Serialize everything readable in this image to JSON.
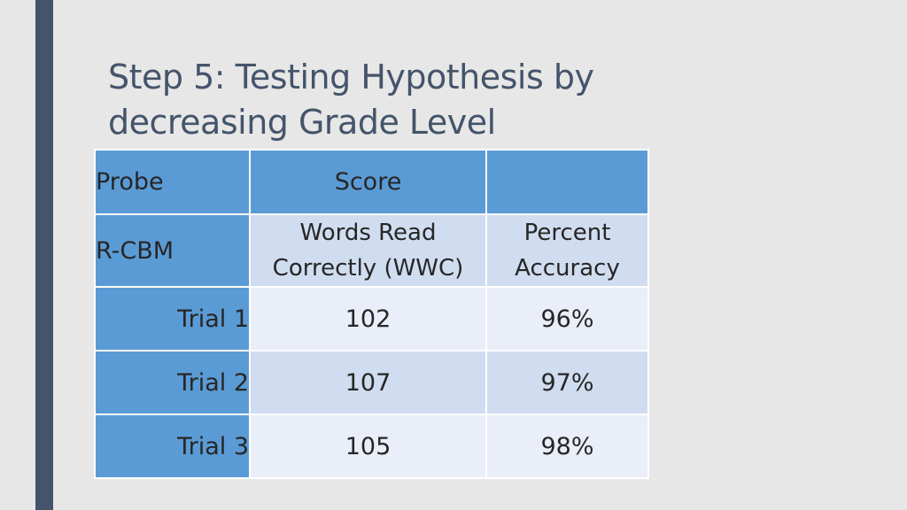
{
  "slide": {
    "title_line1": "Step 5: Testing Hypothesis by",
    "title_line2": "decreasing Grade Level",
    "accent_color": "#44546a",
    "header_color": "#5b9bd5"
  },
  "table": {
    "header": {
      "probe": "Probe",
      "score": "Score",
      "blank": ""
    },
    "subheader": {
      "probe": "R-CBM",
      "wwc_line1": "Words Read",
      "wwc_line2": "Correctly (WWC)",
      "accuracy_line1": "Percent",
      "accuracy_line2": "Accuracy"
    },
    "rows": [
      {
        "trial": "Trial 1",
        "wwc": "102",
        "accuracy": "96%"
      },
      {
        "trial": "Trial 2",
        "wwc": "107",
        "accuracy": "97%"
      },
      {
        "trial": "Trial 3",
        "wwc": "105",
        "accuracy": "98%"
      }
    ]
  }
}
